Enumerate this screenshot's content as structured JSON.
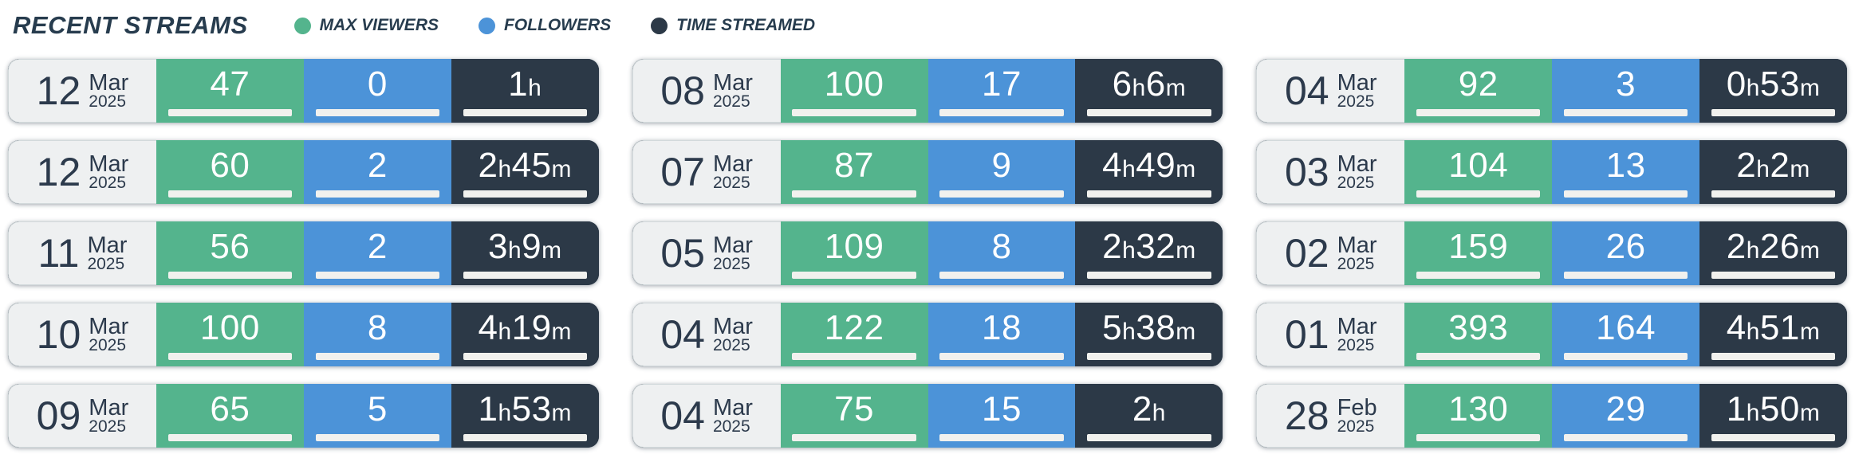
{
  "header": {
    "title": "RECENT STREAMS"
  },
  "legend": [
    {
      "label": "MAX VIEWERS",
      "color": "#54b48d"
    },
    {
      "label": "FOLLOWERS",
      "color": "#4c93d8"
    },
    {
      "label": "TIME STREAMED",
      "color": "#2c3947"
    }
  ],
  "colors": {
    "viewers_bg": "#54b48d",
    "followers_bg": "#4c93d8",
    "time_bg": "#2c3947",
    "date_bg": "#eef0f1",
    "bar_track": "#f1f1ee",
    "bar_fill_dark": "#2c3947",
    "bar_fill_red": "#c1402f",
    "text_dark": "#273c4e",
    "text_light": "#ffffff"
  },
  "streams": [
    {
      "day": "12",
      "month": "Mar",
      "year": "2025",
      "max_viewers": 47,
      "followers": 0,
      "time_streamed": "1h",
      "minutes": 60
    },
    {
      "day": "12",
      "month": "Mar",
      "year": "2025",
      "max_viewers": 60,
      "followers": 2,
      "time_streamed": "2h45m",
      "minutes": 165
    },
    {
      "day": "11",
      "month": "Mar",
      "year": "2025",
      "max_viewers": 56,
      "followers": 2,
      "time_streamed": "3h9m",
      "minutes": 189
    },
    {
      "day": "10",
      "month": "Mar",
      "year": "2025",
      "max_viewers": 100,
      "followers": 8,
      "time_streamed": "4h19m",
      "minutes": 259
    },
    {
      "day": "09",
      "month": "Mar",
      "year": "2025",
      "max_viewers": 65,
      "followers": 5,
      "time_streamed": "1h53m",
      "minutes": 113
    },
    {
      "day": "08",
      "month": "Mar",
      "year": "2025",
      "max_viewers": 100,
      "followers": 17,
      "time_streamed": "6h6m",
      "minutes": 366
    },
    {
      "day": "07",
      "month": "Mar",
      "year": "2025",
      "max_viewers": 87,
      "followers": 9,
      "time_streamed": "4h49m",
      "minutes": 289
    },
    {
      "day": "05",
      "month": "Mar",
      "year": "2025",
      "max_viewers": 109,
      "followers": 8,
      "time_streamed": "2h32m",
      "minutes": 152
    },
    {
      "day": "04",
      "month": "Mar",
      "year": "2025",
      "max_viewers": 122,
      "followers": 18,
      "time_streamed": "5h38m",
      "minutes": 338
    },
    {
      "day": "04",
      "month": "Mar",
      "year": "2025",
      "max_viewers": 75,
      "followers": 15,
      "time_streamed": "2h",
      "minutes": 120
    },
    {
      "day": "04",
      "month": "Mar",
      "year": "2025",
      "max_viewers": 92,
      "followers": 3,
      "time_streamed": "0h53m",
      "minutes": 53
    },
    {
      "day": "03",
      "month": "Mar",
      "year": "2025",
      "max_viewers": 104,
      "followers": 13,
      "time_streamed": "2h2m",
      "minutes": 122
    },
    {
      "day": "02",
      "month": "Mar",
      "year": "2025",
      "max_viewers": 159,
      "followers": 26,
      "time_streamed": "2h26m",
      "minutes": 146
    },
    {
      "day": "01",
      "month": "Mar",
      "year": "2025",
      "max_viewers": 393,
      "followers": 164,
      "time_streamed": "4h51m",
      "minutes": 291
    },
    {
      "day": "28",
      "month": "Feb",
      "year": "2025",
      "max_viewers": 130,
      "followers": 29,
      "time_streamed": "1h50m",
      "minutes": 110
    }
  ]
}
